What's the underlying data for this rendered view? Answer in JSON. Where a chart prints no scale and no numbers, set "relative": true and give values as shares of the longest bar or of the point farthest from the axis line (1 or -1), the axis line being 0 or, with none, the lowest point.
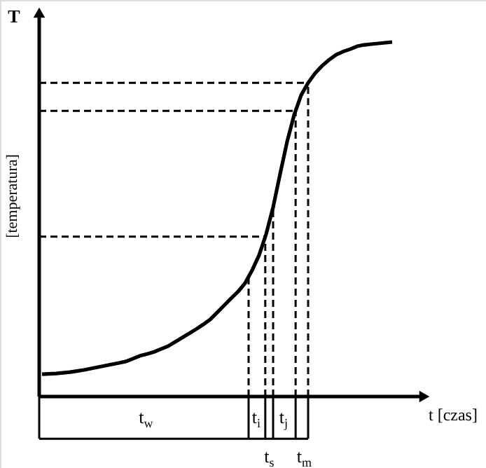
{
  "chart_data": {
    "type": "line",
    "relative": true,
    "xlabel": "t [czas]",
    "ylabel": "T",
    "categories": [
      null,
      null,
      null,
      null,
      null,
      null,
      null,
      null,
      null,
      null,
      null,
      null,
      null,
      null,
      null,
      null,
      null,
      null,
      null,
      null,
      null,
      null,
      null,
      null,
      null,
      null,
      null,
      null,
      null,
      null,
      null,
      null,
      null,
      null,
      null,
      null,
      null,
      null,
      null,
      null,
      null,
      null,
      null,
      null,
      null,
      null,
      null,
      null,
      null,
      null,
      null
    ],
    "series": [
      {
        "color": "#000000",
        "line_style": "solid",
        "values": [
          0.063,
          0.064,
          0.065,
          0.067,
          0.069,
          0.072,
          0.075,
          0.079,
          0.083,
          0.087,
          0.091,
          0.095,
          0.099,
          0.107,
          0.115,
          0.12,
          0.126,
          0.134,
          0.142,
          0.154,
          0.166,
          0.178,
          0.19,
          0.203,
          0.217,
          0.237,
          0.257,
          0.277,
          0.296,
          0.32,
          0.356,
          0.399,
          0.458,
          0.534,
          0.628,
          0.719,
          0.794,
          0.85,
          0.885,
          0.912,
          0.933,
          0.95,
          0.964,
          0.973,
          0.98,
          0.988,
          0.992,
          0.994,
          0.996,
          0.998,
          1.0
        ]
      }
    ],
    "ref_lines": [
      {
        "axis": "y",
        "value": 0.451,
        "line_style": "dashed",
        "color": "#000000"
      },
      {
        "axis": "y",
        "value": 0.806,
        "line_style": "dashed",
        "color": "#000000"
      },
      {
        "axis": "y",
        "value": 0.885,
        "line_style": "dashed",
        "color": "#000000"
      }
    ],
    "annotations": [
      "t$_{w}$",
      "t$_{i}$",
      "t$_{s}$",
      "t$_{j}$",
      "t$_{m}$",
      "[temperatura]"
    ]
  }
}
